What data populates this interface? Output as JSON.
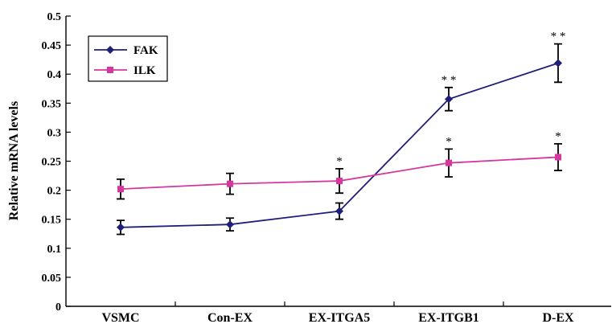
{
  "chart_data": {
    "type": "line",
    "title": "",
    "xlabel": "",
    "ylabel": "Relative mRNA levels",
    "ylim": [
      0,
      0.5
    ],
    "yticks": [
      0,
      0.05,
      0.1,
      0.15,
      0.2,
      0.25,
      0.3,
      0.35,
      0.4,
      0.45,
      0.5
    ],
    "ytick_labels": [
      "0",
      "0.05",
      "0.1",
      "0.15",
      "0.2",
      "0.25",
      "0.3",
      "0.35",
      "0.4",
      "0.45",
      "0.5"
    ],
    "categories": [
      "VSMC",
      "Con-EX",
      "EX-ITGA5",
      "EX-ITGB1",
      "D-EX"
    ],
    "grid": false,
    "legend_position": "top-left",
    "series": [
      {
        "name": "FAK",
        "color": "#1f1f7a",
        "marker": "diamond",
        "values": [
          0.136,
          0.141,
          0.164,
          0.357,
          0.419
        ],
        "errors": [
          0.012,
          0.011,
          0.014,
          0.02,
          0.033
        ],
        "significance": [
          "",
          "",
          "",
          "* *",
          "* *"
        ]
      },
      {
        "name": "ILK",
        "color": "#d6369e",
        "marker": "square",
        "values": [
          0.202,
          0.211,
          0.216,
          0.247,
          0.257
        ],
        "errors": [
          0.017,
          0.018,
          0.021,
          0.024,
          0.023
        ],
        "significance": [
          "",
          "",
          "*",
          "*",
          "*"
        ]
      }
    ]
  }
}
